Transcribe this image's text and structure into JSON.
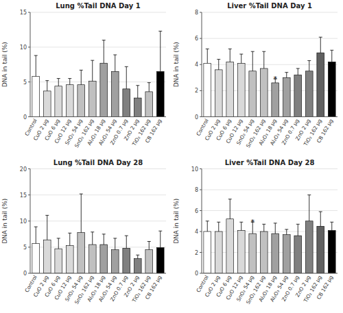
{
  "chart_data": [
    {
      "type": "bar",
      "title": "Lung %Tail DNA Day 1",
      "y_label": "DNA in tail (%)",
      "ylim": [
        0,
        15
      ],
      "yticks": [
        0,
        5,
        10,
        15
      ],
      "categories": [
        "Control",
        "CuO 2 μg",
        "CuO 6 μg",
        "CuO 12 μg",
        "SnO₂ 54 μg",
        "SnO₂ 162 μg",
        "Al₂O₃ 18 μg",
        "Al₂O₃ 54 μg",
        "ZnO 0.7 μg",
        "ZnO 2 μg",
        "TiO₂ 162 μg",
        "CB 162 μg"
      ],
      "values": [
        5.8,
        3.7,
        4.4,
        4.6,
        4.6,
        5.1,
        7.7,
        6.5,
        4.0,
        2.7,
        3.6,
        6.5
      ],
      "errors": [
        3.0,
        1.5,
        1.1,
        0.9,
        2.1,
        3.0,
        3.3,
        2.4,
        3.2,
        1.8,
        1.3,
        5.8
      ],
      "colors": [
        "#ffffff",
        "#d9d9d9",
        "#d9d9d9",
        "#d9d9d9",
        "#c0c0c0",
        "#c0c0c0",
        "#a0a0a0",
        "#a0a0a0",
        "#808080",
        "#808080",
        "#c0c0c0",
        "#000000"
      ]
    },
    {
      "type": "bar",
      "title": "Liver %Tail DNA Day 1",
      "y_label": "DNA in tail (%)",
      "ylim": [
        0,
        8
      ],
      "yticks": [
        0,
        2,
        4,
        6,
        8
      ],
      "categories": [
        "Control",
        "CuO 2 μg",
        "CuO 6 μg",
        "CuO 12 μg",
        "SnO₂ 54 μg",
        "SnO₂ 162 μg",
        "Al₂O₃ 18 μg",
        "Al₂O₃ 54 μg",
        "ZnO 0.7 μg",
        "ZnO 2 μg",
        "TiO₂ 162 μg",
        "CB 162 μg"
      ],
      "values": [
        4.1,
        3.6,
        4.2,
        4.1,
        3.5,
        3.7,
        2.6,
        3.0,
        3.2,
        3.5,
        4.9,
        4.2
      ],
      "errors": [
        1.1,
        0.8,
        1.0,
        0.7,
        1.5,
        1.3,
        0.3,
        0.4,
        0.5,
        0.8,
        1.2,
        0.9
      ],
      "colors": [
        "#ffffff",
        "#d9d9d9",
        "#d9d9d9",
        "#d9d9d9",
        "#c0c0c0",
        "#c0c0c0",
        "#a0a0a0",
        "#a0a0a0",
        "#808080",
        "#808080",
        "#606060",
        "#000000"
      ],
      "annotations": [
        {
          "category": "Al₂O₃ 18 μg",
          "text": "*"
        }
      ]
    },
    {
      "type": "bar",
      "title": "Lung %Tail DNA Day 28",
      "y_label": "DNA in tail (%)",
      "ylim": [
        0,
        20
      ],
      "yticks": [
        0,
        5,
        10,
        15,
        20
      ],
      "categories": [
        "Control",
        "CuO 2 μg",
        "CuO 6 μg",
        "CuO 12 μg",
        "SnO₂ 54 μg",
        "SnO₂ 162 μg",
        "Al₂O₃ 18 μg",
        "Al₂O₃ 54 μg",
        "ZnO 0.7 μg",
        "ZnO 2 μg",
        "TiO₂ 162 μg",
        "CB 162 μg"
      ],
      "values": [
        5.7,
        6.4,
        4.7,
        5.3,
        7.8,
        5.5,
        5.5,
        4.5,
        4.8,
        2.8,
        4.5,
        4.9
      ],
      "errors": [
        3.2,
        4.7,
        2.0,
        2.4,
        7.4,
        2.4,
        2.0,
        2.2,
        2.4,
        0.7,
        1.6,
        3.2
      ],
      "colors": [
        "#ffffff",
        "#d9d9d9",
        "#d9d9d9",
        "#d9d9d9",
        "#c0c0c0",
        "#c0c0c0",
        "#a0a0a0",
        "#a0a0a0",
        "#808080",
        "#808080",
        "#c0c0c0",
        "#000000"
      ]
    },
    {
      "type": "bar",
      "title": "Liver %Tail DNA Day 28",
      "y_label": "DNA in tail (%)",
      "ylim": [
        0,
        10
      ],
      "yticks": [
        0,
        2,
        4,
        6,
        8,
        10
      ],
      "categories": [
        "Control",
        "CuO 2 μg",
        "CuO 6 μg",
        "CuO 12 μg",
        "SnO₂ 54 μg",
        "SnO₂ 162 μg",
        "Al₂O₃ 18 μg",
        "Al₂O₃ 54 μg",
        "ZnO 0.7 μg",
        "ZnO 2 μg",
        "TiO₂ 162 μg",
        "CB 162 μg"
      ],
      "values": [
        4.0,
        4.0,
        5.2,
        4.1,
        3.8,
        4.0,
        3.8,
        3.7,
        3.6,
        5.0,
        4.5,
        4.1
      ],
      "errors": [
        1.0,
        0.9,
        1.9,
        0.8,
        1.1,
        0.7,
        1.0,
        0.5,
        1.1,
        2.5,
        1.4,
        0.8
      ],
      "colors": [
        "#ffffff",
        "#d9d9d9",
        "#d9d9d9",
        "#d9d9d9",
        "#c0c0c0",
        "#c0c0c0",
        "#a0a0a0",
        "#a0a0a0",
        "#808080",
        "#808080",
        "#606060",
        "#000000"
      ],
      "annotations": [
        {
          "category": "SnO₂ 54 μg",
          "text": "*"
        }
      ]
    }
  ]
}
